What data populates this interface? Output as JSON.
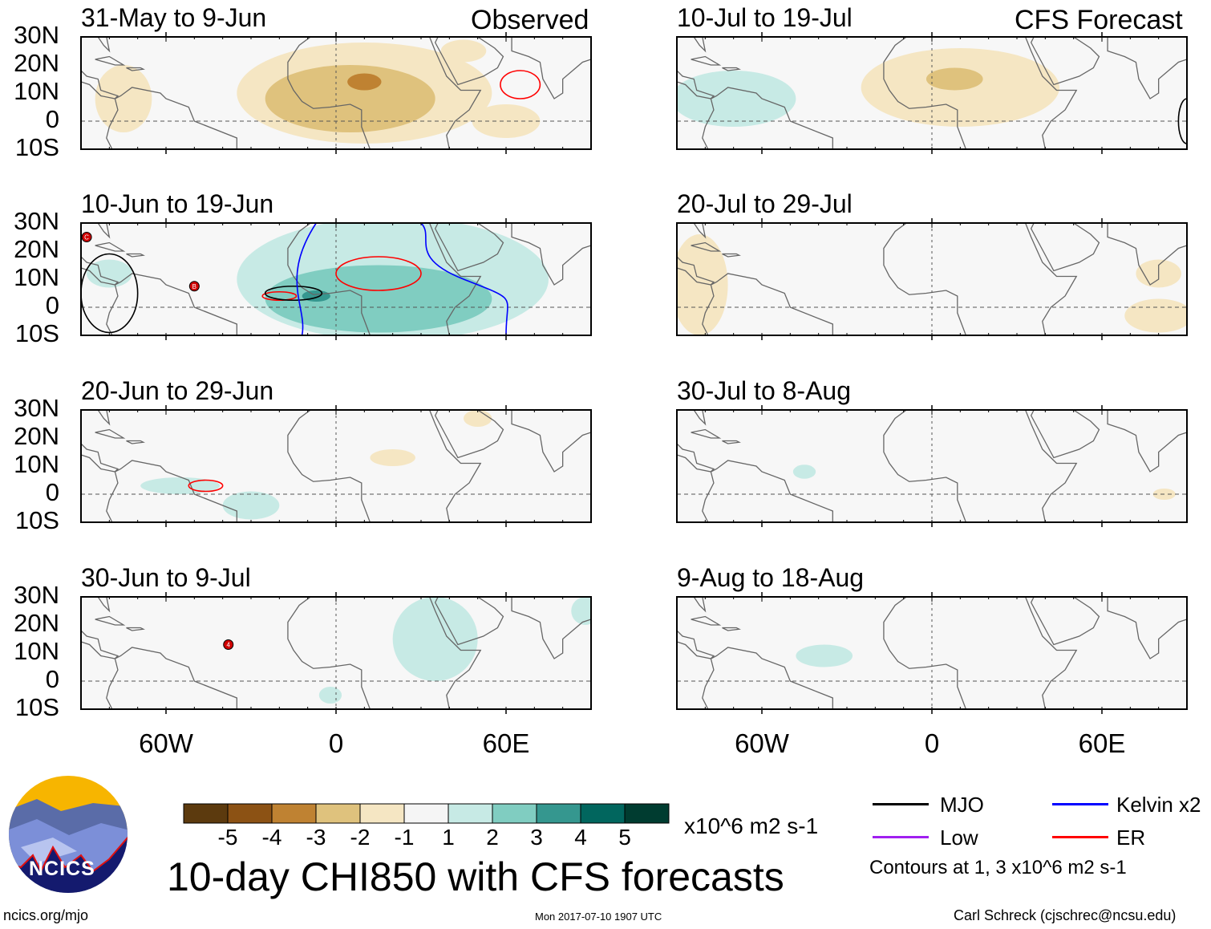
{
  "title": "10-day CHI850 with CFS forecasts",
  "footer": {
    "left": "ncics.org/mjo",
    "center": "Mon 2017-07-10 1907 UTC",
    "right": "Carl Schreck (cjschrec@ncsu.edu)"
  },
  "logo_text": "NCICS",
  "column_labels": {
    "left": "Observed",
    "right": "CFS Forecast"
  },
  "lat_ticks": [
    "30N",
    "20N",
    "10N",
    "0",
    "10S"
  ],
  "lon_ticks": [
    "60W",
    "0",
    "60E"
  ],
  "colorbar": {
    "labels": [
      "-5",
      "-4",
      "-3",
      "-2",
      "-1",
      "1",
      "2",
      "3",
      "4",
      "5"
    ],
    "colors": [
      "#5c3a0e",
      "#8c5214",
      "#bf8232",
      "#dfc27d",
      "#f5e6c3",
      "#f5f5f5",
      "#c7eae5",
      "#80cdc1",
      "#35978f",
      "#01665e",
      "#003c30"
    ],
    "units": "x10^6 m2 s-1"
  },
  "legend": {
    "items": [
      {
        "label": "MJO",
        "color": "#000000"
      },
      {
        "label": "Kelvin x2",
        "color": "#0000ff"
      },
      {
        "label": "Low",
        "color": "#a020f0"
      },
      {
        "label": "ER",
        "color": "#ff0000"
      }
    ],
    "note": "Contours at 1, 3 x10^6 m2 s-1"
  },
  "chart_data": {
    "type": "heatmap",
    "variable": "CHI850 anomaly",
    "lon_range": [
      -90,
      90
    ],
    "lat_range": [
      -10,
      30
    ],
    "panels": [
      {
        "label": "31-May to 9-Jun",
        "col": 0,
        "row": 0,
        "shading": [
          [
            10,
            10,
            45,
            18,
            -1
          ],
          [
            5,
            8,
            30,
            12,
            -2
          ],
          [
            10,
            14,
            6,
            3,
            -3
          ],
          [
            -75,
            8,
            10,
            12,
            -1
          ],
          [
            60,
            0,
            12,
            6,
            -1
          ],
          [
            45,
            25,
            8,
            4,
            -1
          ]
        ],
        "contours": [
          [
            65,
            13,
            7,
            5,
            "#ff0000"
          ]
        ],
        "storms": []
      },
      {
        "label": "10-Jun to 19-Jun",
        "col": 0,
        "row": 0.999,
        "shading": [
          [
            20,
            10,
            55,
            22,
            1
          ],
          [
            15,
            3,
            40,
            12,
            2
          ],
          [
            -7,
            4,
            5,
            2,
            3
          ],
          [
            -80,
            12,
            8,
            5,
            1
          ]
        ],
        "contours": [
          [
            15,
            12,
            15,
            6,
            "#ff0000"
          ],
          [
            -20,
            4,
            6,
            1.5,
            "#ff0000"
          ],
          [
            -15,
            5,
            10,
            2.5,
            "#000000"
          ],
          [
            -80,
            5,
            10,
            14,
            "#000000"
          ]
        ],
        "storms": [
          [
            "C",
            -88,
            25
          ],
          [
            "B",
            -50,
            7.5
          ]
        ]
      },
      {
        "label": "20-Jun to 29-Jun",
        "col": 0,
        "row": 2,
        "shading": [
          [
            -55,
            3,
            14,
            3,
            1
          ],
          [
            -30,
            -4,
            10,
            5,
            1
          ],
          [
            20,
            13,
            8,
            3,
            -1
          ],
          [
            50,
            27,
            5,
            3,
            -1
          ]
        ],
        "contours": [
          [
            -46,
            3,
            6,
            2,
            "#ff0000"
          ]
        ],
        "storms": []
      },
      {
        "label": "30-Jun to 9-Jul",
        "col": 0,
        "row": 3,
        "shading": [
          [
            35,
            15,
            15,
            15,
            1
          ],
          [
            -2,
            -5,
            4,
            3,
            1
          ],
          [
            88,
            25,
            5,
            5,
            1
          ]
        ],
        "contours": [],
        "storms": [
          [
            "4",
            -38,
            13
          ]
        ]
      },
      {
        "label": "10-Jul to 19-Jul",
        "col": 1,
        "row": 0,
        "shading": [
          [
            -70,
            8,
            22,
            10,
            1
          ],
          [
            10,
            12,
            35,
            14,
            -1
          ],
          [
            8,
            15,
            10,
            4,
            -2
          ]
        ],
        "contours": [
          [
            90,
            0,
            3,
            8,
            "#000000"
          ]
        ],
        "storms": []
      },
      {
        "label": "20-Jul to 29-Jul",
        "col": 1,
        "row": 1,
        "shading": [
          [
            -82,
            8,
            10,
            18,
            -1
          ],
          [
            80,
            -3,
            12,
            6,
            -1
          ],
          [
            80,
            12,
            8,
            5,
            -1
          ]
        ],
        "contours": [],
        "storms": []
      },
      {
        "label": "30-Jul to 8-Aug",
        "col": 1,
        "row": 2,
        "shading": [
          [
            -45,
            8,
            4,
            2.5,
            1
          ],
          [
            82,
            0,
            4,
            2,
            -1
          ]
        ],
        "contours": [],
        "storms": []
      },
      {
        "label": "9-Aug to 18-Aug",
        "col": 1,
        "row": 3,
        "shading": [
          [
            -38,
            9,
            10,
            4,
            1
          ]
        ],
        "contours": [],
        "storms": []
      }
    ]
  }
}
